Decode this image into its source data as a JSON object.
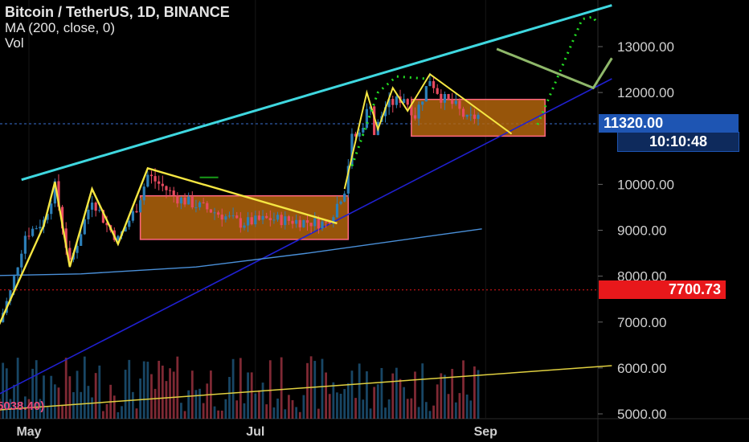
{
  "legend": {
    "title": "Bitcoin / TetherUS, 1D, BINANCE",
    "ma": "MA (200, close, 0)",
    "vol": "Vol"
  },
  "badges": {
    "last_price": "11320.00",
    "countdown": "10:10:48",
    "reference_price": "7700.73",
    "volume_value": "5038.40)"
  },
  "colors": {
    "background": "#000000",
    "candle_up": "#2c7fb8",
    "candle_down": "#e84a5f",
    "ma_line": "#4a90d9",
    "upper_trend": "#3fd8e0",
    "lower_trend": "#2020d0",
    "zigzag": "#f5e642",
    "zone_fill": "#b8680c",
    "zone_border": "#ff6680",
    "projection_dots": "#22dd22",
    "projection_line": "#8fb86a",
    "volume_trend": "#e0d040",
    "price_badge": "#1e55b3",
    "reference_badge": "#e8181b"
  },
  "chart_data": {
    "type": "candlestick",
    "symbol": "BTCUSDT",
    "timeframe": "1D",
    "x_labels": [
      "May",
      "Jul",
      "Sep"
    ],
    "y_ticks": [
      "13000.00",
      "12000.00",
      "10000.00",
      "9000.00",
      "8000.00",
      "7000.00",
      "6000.00",
      "5000.00"
    ],
    "y_range": [
      4900,
      13800
    ],
    "price_anchors": [
      {
        "date": "2020-04-23",
        "price": 7000
      },
      {
        "date": "2020-04-26",
        "price": 7650
      },
      {
        "date": "2020-04-30",
        "price": 8900
      },
      {
        "date": "2020-05-05",
        "price": 9200
      },
      {
        "date": "2020-05-08",
        "price": 9950
      },
      {
        "date": "2020-05-12",
        "price": 8250
      },
      {
        "date": "2020-05-18",
        "price": 9700
      },
      {
        "date": "2020-05-22",
        "price": 9100
      },
      {
        "date": "2020-05-25",
        "price": 8800
      },
      {
        "date": "2020-05-30",
        "price": 9500
      },
      {
        "date": "2020-06-02",
        "price": 10200
      },
      {
        "date": "2020-06-10",
        "price": 9700
      },
      {
        "date": "2020-06-20",
        "price": 9400
      },
      {
        "date": "2020-06-27",
        "price": 9150
      },
      {
        "date": "2020-07-05",
        "price": 9250
      },
      {
        "date": "2020-07-12",
        "price": 9200
      },
      {
        "date": "2020-07-20",
        "price": 9150
      },
      {
        "date": "2020-07-22",
        "price": 9400
      },
      {
        "date": "2020-07-25",
        "price": 9900
      },
      {
        "date": "2020-07-27",
        "price": 11000
      },
      {
        "date": "2020-07-29",
        "price": 11100
      },
      {
        "date": "2020-08-01",
        "price": 11800
      },
      {
        "date": "2020-08-02",
        "price": 11100
      },
      {
        "date": "2020-08-05",
        "price": 11700
      },
      {
        "date": "2020-08-10",
        "price": 11900
      },
      {
        "date": "2020-08-13",
        "price": 11500
      },
      {
        "date": "2020-08-17",
        "price": 12300
      },
      {
        "date": "2020-08-20",
        "price": 11900
      },
      {
        "date": "2020-08-24",
        "price": 11700
      },
      {
        "date": "2020-08-27",
        "price": 11400
      },
      {
        "date": "2020-08-30",
        "price": 11500
      }
    ],
    "ma200": [
      {
        "date": "2020-04-15",
        "value": 8000
      },
      {
        "date": "2020-05-15",
        "value": 8050
      },
      {
        "date": "2020-06-15",
        "value": 8200
      },
      {
        "date": "2020-07-15",
        "value": 8500
      },
      {
        "date": "2020-08-15",
        "value": 8850
      },
      {
        "date": "2020-08-31",
        "value": 9030
      }
    ],
    "annotations": {
      "upper_trendline": [
        {
          "date": "2020-04-29",
          "price": 10100
        },
        {
          "date": "2020-10-05",
          "price": 13900
        }
      ],
      "lower_trendline": [
        {
          "date": "2020-04-15",
          "price": 5100
        },
        {
          "date": "2020-10-05",
          "price": 12300
        }
      ],
      "rectangles": [
        {
          "from": "2020-05-31",
          "to": "2020-07-26",
          "low": 8800,
          "high": 9750
        },
        {
          "from": "2020-08-12",
          "to": "2020-09-17",
          "low": 11050,
          "high": 11850
        }
      ],
      "reference_level": 7700.73,
      "last_price": 11320.0,
      "volume_trend": [
        {
          "date": "2020-04-15",
          "price": 5040
        },
        {
          "date": "2020-10-05",
          "price": 6050
        }
      ]
    }
  }
}
